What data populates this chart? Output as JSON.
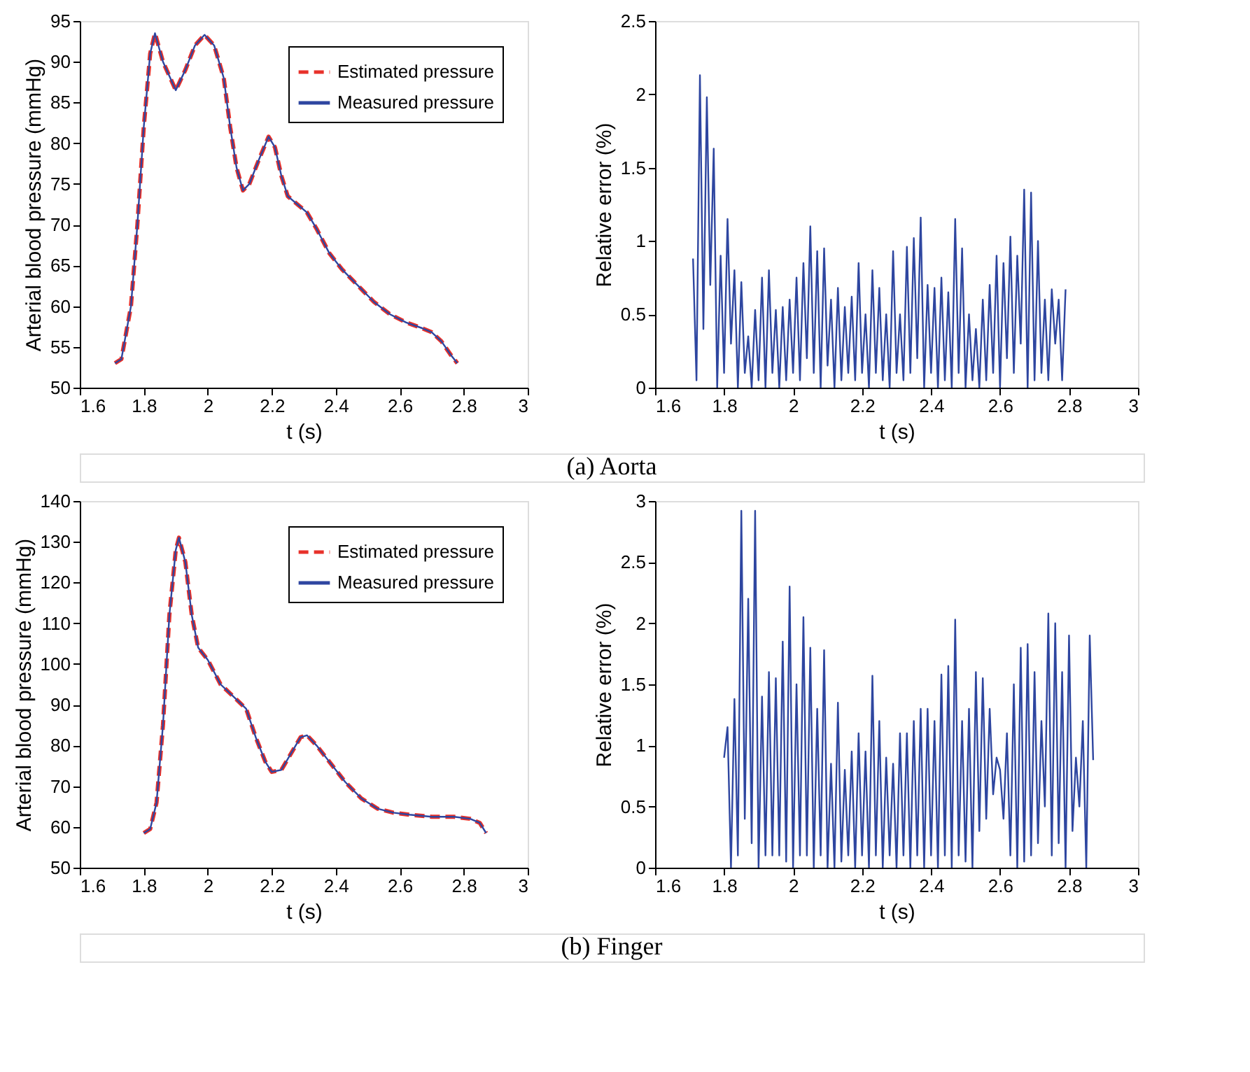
{
  "chart_data": [
    {
      "type": "line",
      "xlabel": "t (s)",
      "ylabel": "Arterial blood pressure (mmHg)",
      "xlim": [
        1.6,
        3
      ],
      "ylim": [
        50,
        95
      ],
      "xticks": [
        1.6,
        1.8,
        2,
        2.2,
        2.4,
        2.6,
        2.8,
        3
      ],
      "yticks": [
        50,
        55,
        60,
        65,
        70,
        75,
        80,
        85,
        90,
        95
      ],
      "legend": "top right",
      "grid": false,
      "annotations": [
        "(a)  Aorta"
      ],
      "x": [
        1.71,
        1.73,
        1.76,
        1.78,
        1.8,
        1.82,
        1.835,
        1.86,
        1.9,
        1.93,
        1.96,
        1.99,
        2.02,
        2.05,
        2.07,
        2.09,
        2.11,
        2.13,
        2.16,
        2.19,
        2.21,
        2.23,
        2.25,
        2.28,
        2.31,
        2.34,
        2.38,
        2.42,
        2.47,
        2.52,
        2.57,
        2.62,
        2.67,
        2.7,
        2.73,
        2.76,
        2.78
      ],
      "series": [
        {
          "name": "Estimated pressure",
          "color": "#e8312a",
          "line_style": "dashed",
          "values": [
            53,
            53.5,
            60,
            70,
            82,
            91,
            93.5,
            90,
            86.5,
            89,
            92,
            93.3,
            92,
            88,
            82,
            77,
            74.2,
            75,
            78,
            80.8,
            79.5,
            76,
            73.5,
            72.5,
            71.5,
            69.5,
            66.5,
            64.5,
            62.5,
            60.5,
            59,
            58,
            57.3,
            56.8,
            55.7,
            54,
            53
          ]
        },
        {
          "name": "Measured pressure",
          "color": "#2e46a0",
          "line_style": "solid",
          "values": [
            53,
            53.5,
            60,
            70,
            82,
            91,
            93.5,
            90,
            86.5,
            89,
            92,
            93.3,
            92,
            88,
            82,
            77,
            74.2,
            75,
            78,
            80.8,
            79.5,
            76,
            73.5,
            72.5,
            71.5,
            69.5,
            66.5,
            64.5,
            62.5,
            60.5,
            59,
            58,
            57.3,
            56.8,
            55.7,
            54,
            53
          ]
        }
      ]
    },
    {
      "type": "line",
      "xlabel": "t (s)",
      "ylabel": "Relative error (%)",
      "xlim": [
        1.6,
        3
      ],
      "ylim": [
        0,
        2.5
      ],
      "xticks": [
        1.6,
        1.8,
        2,
        2.2,
        2.4,
        2.6,
        2.8,
        3
      ],
      "yticks": [
        0,
        0.5,
        1,
        1.5,
        2,
        2.5
      ],
      "grid": false,
      "x": [
        1.71,
        1.72,
        1.73,
        1.74,
        1.75,
        1.76,
        1.77,
        1.78,
        1.79,
        1.8,
        1.81,
        1.82,
        1.83,
        1.84,
        1.85,
        1.86,
        1.87,
        1.88,
        1.89,
        1.9,
        1.91,
        1.92,
        1.93,
        1.94,
        1.95,
        1.96,
        1.97,
        1.98,
        1.99,
        2,
        2.01,
        2.02,
        2.03,
        2.04,
        2.05,
        2.06,
        2.07,
        2.08,
        2.09,
        2.1,
        2.11,
        2.12,
        2.13,
        2.14,
        2.15,
        2.16,
        2.17,
        2.18,
        2.19,
        2.2,
        2.21,
        2.22,
        2.23,
        2.24,
        2.25,
        2.26,
        2.27,
        2.28,
        2.29,
        2.3,
        2.31,
        2.32,
        2.33,
        2.34,
        2.35,
        2.36,
        2.37,
        2.38,
        2.39,
        2.4,
        2.41,
        2.42,
        2.43,
        2.44,
        2.45,
        2.46,
        2.47,
        2.48,
        2.49,
        2.5,
        2.51,
        2.52,
        2.53,
        2.54,
        2.55,
        2.56,
        2.57,
        2.58,
        2.59,
        2.6,
        2.61,
        2.62,
        2.63,
        2.64,
        2.65,
        2.66,
        2.67,
        2.68,
        2.69,
        2.7,
        2.71,
        2.72,
        2.73,
        2.74,
        2.75,
        2.76,
        2.77,
        2.78,
        2.79
      ],
      "series": [
        {
          "color": "#2e46a0",
          "values": [
            0.88,
            0.05,
            2.13,
            0.4,
            1.98,
            0.7,
            1.63,
            0,
            0.9,
            0.1,
            1.15,
            0.3,
            0.8,
            0,
            0.72,
            0.1,
            0.35,
            0,
            0.53,
            0.05,
            0.75,
            0,
            0.8,
            0.1,
            0.53,
            0,
            0.55,
            0.05,
            0.6,
            0.1,
            0.75,
            0.05,
            0.85,
            0.2,
            1.1,
            0.1,
            0.93,
            0,
            0.95,
            0.15,
            0.6,
            0,
            0.68,
            0.05,
            0.55,
            0.1,
            0.62,
            0.05,
            0.85,
            0.1,
            0.5,
            0,
            0.8,
            0.1,
            0.68,
            0.05,
            0.5,
            0,
            0.93,
            0.1,
            0.5,
            0.05,
            0.96,
            0.1,
            1.02,
            0.2,
            1.16,
            0,
            0.7,
            0.1,
            0.68,
            0,
            0.75,
            0.05,
            0.65,
            0,
            1.15,
            0.1,
            0.95,
            0,
            0.5,
            0.05,
            0.4,
            0,
            0.6,
            0.05,
            0.7,
            0.1,
            0.9,
            0,
            0.85,
            0.2,
            1.03,
            0.1,
            0.9,
            0.3,
            1.35,
            0,
            1.33,
            0.05,
            1,
            0.1,
            0.6,
            0.05,
            0.67,
            0.3,
            0.6,
            0.05,
            0.67
          ]
        }
      ]
    },
    {
      "type": "line",
      "xlabel": "t (s)",
      "ylabel": "Arterial blood pressure  (mmHg)",
      "xlim": [
        1.6,
        3
      ],
      "ylim": [
        50,
        140
      ],
      "xticks": [
        1.6,
        1.8,
        2,
        2.2,
        2.4,
        2.6,
        2.8,
        3
      ],
      "yticks": [
        50,
        60,
        70,
        80,
        90,
        100,
        110,
        120,
        130,
        140
      ],
      "legend": "top right",
      "grid": false,
      "annotations": [
        "(b)  Finger"
      ],
      "x": [
        1.8,
        1.82,
        1.84,
        1.86,
        1.88,
        1.9,
        1.91,
        1.93,
        1.95,
        1.97,
        2,
        2.04,
        2.08,
        2.12,
        2.15,
        2.18,
        2.2,
        2.23,
        2.26,
        2.29,
        2.31,
        2.34,
        2.38,
        2.43,
        2.48,
        2.53,
        2.58,
        2.63,
        2.7,
        2.77,
        2.82,
        2.85,
        2.87
      ],
      "series": [
        {
          "name": "Estimated pressure",
          "color": "#e8312a",
          "line_style": "dashed",
          "values": [
            58.5,
            59.5,
            66,
            85,
            112,
            128,
            131,
            125,
            112,
            104,
            101,
            95,
            92,
            89,
            82,
            76,
            73.5,
            74,
            78,
            82,
            82.5,
            80,
            76,
            71,
            67,
            64.5,
            63.5,
            63,
            62.5,
            62.5,
            62,
            61,
            58.5
          ]
        },
        {
          "name": "Measured pressure",
          "color": "#2e46a0",
          "line_style": "solid",
          "values": [
            58.5,
            59.5,
            66,
            85,
            112,
            128,
            131,
            125,
            112,
            104,
            101,
            95,
            92,
            89,
            82,
            76,
            73.5,
            74,
            78,
            82,
            82.5,
            80,
            76,
            71,
            67,
            64.5,
            63.5,
            63,
            62.5,
            62.5,
            62,
            61,
            58.5
          ]
        }
      ]
    },
    {
      "type": "line",
      "xlabel": "t (s)",
      "ylabel": "Relative error (%)",
      "xlim": [
        1.6,
        3
      ],
      "ylim": [
        0,
        3
      ],
      "xticks": [
        1.6,
        1.8,
        2,
        2.2,
        2.4,
        2.6,
        2.8,
        3
      ],
      "yticks": [
        0,
        0.5,
        1,
        1.5,
        2,
        2.5,
        3
      ],
      "grid": false,
      "x": [
        1.8,
        1.81,
        1.82,
        1.83,
        1.84,
        1.85,
        1.86,
        1.87,
        1.88,
        1.89,
        1.9,
        1.91,
        1.92,
        1.93,
        1.94,
        1.95,
        1.96,
        1.97,
        1.98,
        1.99,
        2,
        2.01,
        2.02,
        2.03,
        2.04,
        2.05,
        2.06,
        2.07,
        2.08,
        2.09,
        2.1,
        2.11,
        2.12,
        2.13,
        2.14,
        2.15,
        2.16,
        2.17,
        2.18,
        2.19,
        2.2,
        2.21,
        2.22,
        2.23,
        2.24,
        2.25,
        2.26,
        2.27,
        2.28,
        2.29,
        2.3,
        2.31,
        2.32,
        2.33,
        2.34,
        2.35,
        2.36,
        2.37,
        2.38,
        2.39,
        2.4,
        2.41,
        2.42,
        2.43,
        2.44,
        2.45,
        2.46,
        2.47,
        2.48,
        2.49,
        2.5,
        2.51,
        2.52,
        2.53,
        2.54,
        2.55,
        2.56,
        2.57,
        2.58,
        2.59,
        2.6,
        2.61,
        2.62,
        2.63,
        2.64,
        2.65,
        2.66,
        2.67,
        2.68,
        2.69,
        2.7,
        2.71,
        2.72,
        2.73,
        2.74,
        2.75,
        2.76,
        2.77,
        2.78,
        2.79,
        2.8,
        2.81,
        2.82,
        2.83,
        2.84,
        2.85,
        2.86,
        2.87
      ],
      "series": [
        {
          "color": "#2e46a0",
          "values": [
            0.9,
            1.15,
            0,
            1.38,
            0.1,
            2.92,
            0.4,
            2.2,
            0.2,
            2.92,
            0,
            1.4,
            0.1,
            1.6,
            0.1,
            1.55,
            0.1,
            1.85,
            0.05,
            2.3,
            0,
            1.5,
            0.1,
            2.05,
            0.1,
            1.8,
            0,
            1.3,
            0.1,
            1.78,
            0,
            0.85,
            0,
            1.35,
            0.05,
            0.8,
            0.1,
            0.95,
            0,
            1.1,
            0.1,
            0.95,
            0,
            1.57,
            0.1,
            1.2,
            0,
            0.9,
            0.1,
            0.85,
            0,
            1.1,
            0.1,
            1.1,
            0,
            1.2,
            0.1,
            1.3,
            0,
            1.3,
            0.1,
            1.2,
            0,
            1.58,
            0.1,
            1.65,
            0,
            2.03,
            0.1,
            1.2,
            0.05,
            1.3,
            0,
            1.6,
            0.3,
            1.55,
            0.4,
            1.3,
            0.6,
            0.9,
            0.8,
            0.4,
            1.1,
            0.1,
            1.5,
            0,
            1.8,
            0.05,
            1.83,
            0.1,
            1.6,
            0.2,
            1.2,
            0.5,
            2.08,
            0.1,
            2,
            0.2,
            1.6,
            0,
            1.9,
            0.3,
            0.9,
            0.5,
            1.2,
            0,
            1.9,
            0.88
          ]
        }
      ]
    }
  ]
}
